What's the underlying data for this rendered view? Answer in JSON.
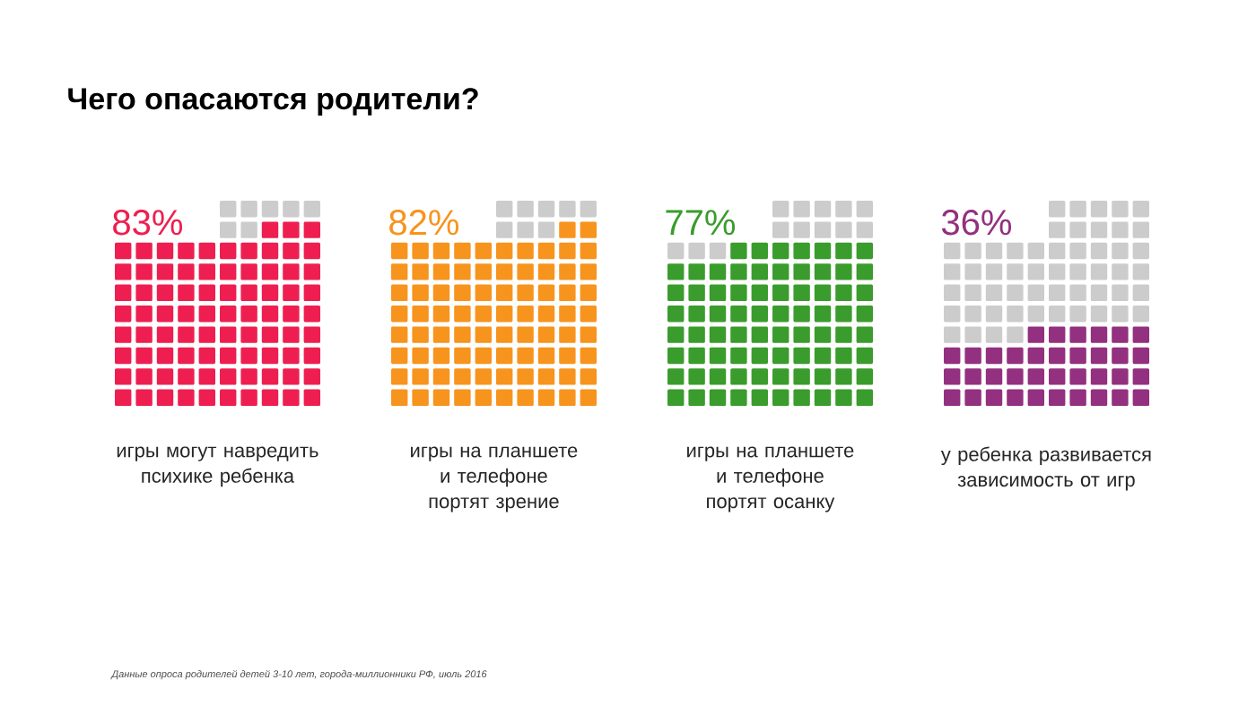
{
  "chart_data": {
    "type": "other",
    "title": "Чего опасаются родители?",
    "categories": [
      "игры могут навредить психике ребенка",
      "игры на планшете и телефоне портят зрение",
      "игры на планшете и телефоне портят осанку",
      "у ребенка развивается зависимость от игр"
    ],
    "values": [
      83,
      82,
      77,
      36
    ],
    "colors": [
      "#ee1f50",
      "#f7941d",
      "#3a9c2c",
      "#93307f"
    ],
    "value_labels": [
      "83%",
      "82%",
      "77%",
      "36%"
    ],
    "annotations": [
      "Данные опроса родителей детей 3-10 лет, города-миллионники РФ, июль 2016"
    ]
  }
}
